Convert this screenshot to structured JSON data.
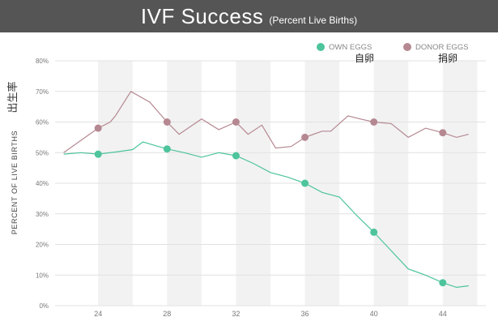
{
  "chart_data": {
    "type": "line",
    "title": "IVF Success",
    "subtitle": "(Percent Live Births)",
    "ylabel": "PERCENT OF LIVE BIRTHS",
    "ylabel_cn": "出生率",
    "xlabel": "",
    "xlim": [
      21.5,
      46.5
    ],
    "ylim": [
      0,
      80
    ],
    "x_ticks": [
      24,
      28,
      32,
      36,
      40,
      44
    ],
    "y_ticks": [
      0,
      10,
      20,
      30,
      40,
      50,
      60,
      70,
      80
    ],
    "y_tick_labels": [
      "0%",
      "10%",
      "20%",
      "30%",
      "40%",
      "50%",
      "60%",
      "70%",
      "80%"
    ],
    "shaded_bands": [
      [
        24,
        26
      ],
      [
        28,
        30
      ],
      [
        32,
        34
      ],
      [
        36,
        38
      ],
      [
        40,
        42
      ],
      [
        44,
        46
      ]
    ],
    "series": [
      {
        "name": "OWN EGGS",
        "color": "#4dc49c",
        "x": [
          22,
          23,
          24,
          25,
          26,
          26.6,
          27.5,
          28,
          29,
          30,
          31,
          32,
          33,
          34,
          35,
          36,
          37,
          38,
          39,
          40,
          41,
          42,
          43,
          44,
          44.8,
          45.5
        ],
        "values": [
          49.5,
          50,
          49.5,
          50.2,
          51,
          53.5,
          52,
          51.2,
          50,
          48.5,
          50,
          49,
          46.5,
          43.5,
          42,
          40,
          37,
          35.5,
          29.5,
          24,
          18,
          12,
          10,
          7.5,
          6,
          6.5
        ],
        "markers_x": [
          24,
          28,
          32,
          36,
          40,
          44
        ]
      },
      {
        "name": "DONOR EGGS",
        "color": "#b58891",
        "x": [
          22,
          23,
          24,
          24.7,
          25,
          25.9,
          27,
          28,
          28.7,
          30,
          31,
          32,
          32.7,
          33.5,
          34.3,
          35.2,
          36,
          37,
          37.5,
          38.5,
          39.2,
          40,
          41,
          42,
          43,
          44,
          44.8,
          45.5
        ],
        "values": [
          50,
          54,
          58,
          60,
          62,
          70,
          66.5,
          60,
          56,
          61,
          57.5,
          60,
          56,
          59,
          51.5,
          52,
          55,
          57,
          57,
          62,
          61,
          60,
          59.5,
          55,
          58,
          56.5,
          55,
          56
        ],
        "markers_x": [
          24,
          28,
          32,
          36,
          40,
          44
        ]
      }
    ]
  },
  "legend": {
    "own_label": "OWN EGGS",
    "own_label_cn": "自卵",
    "donor_label": "DONOR EGGS",
    "donor_label_cn": "捐卵"
  }
}
